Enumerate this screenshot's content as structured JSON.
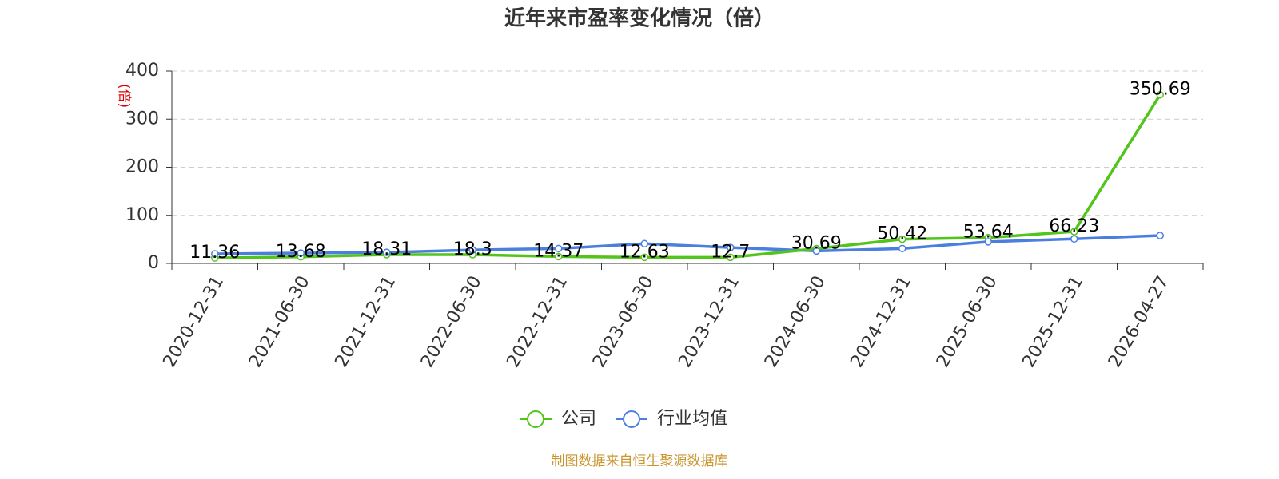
{
  "chart_data": {
    "type": "line",
    "title": "近年来市盈率变化情况（倍）",
    "y_label": "(倍)",
    "source": "制图数据来自恒生聚源数据库",
    "categories": [
      "2020-12-31",
      "2021-06-30",
      "2021-12-31",
      "2022-06-30",
      "2022-12-31",
      "2023-06-30",
      "2023-12-31",
      "2024-06-30",
      "2024-12-31",
      "2025-06-30",
      "2025-12-31",
      "2026-04-27"
    ],
    "series": [
      {
        "name": "公司",
        "color": "#52c41a",
        "values": [
          11.36,
          13.68,
          18.31,
          18.3,
          14.37,
          12.63,
          12.7,
          30.69,
          50.42,
          53.64,
          66.23,
          350.69
        ],
        "data_labels": true
      },
      {
        "name": "行业均值",
        "color": "#4a7fe0",
        "values": [
          20,
          21.6,
          23,
          28,
          31,
          41,
          33,
          26,
          31,
          45,
          51,
          58
        ],
        "data_labels": false
      }
    ],
    "ylim": [
      0,
      400
    ],
    "yticks": [
      0,
      100,
      200,
      300,
      400
    ],
    "grid": true,
    "legend": "bottom"
  }
}
